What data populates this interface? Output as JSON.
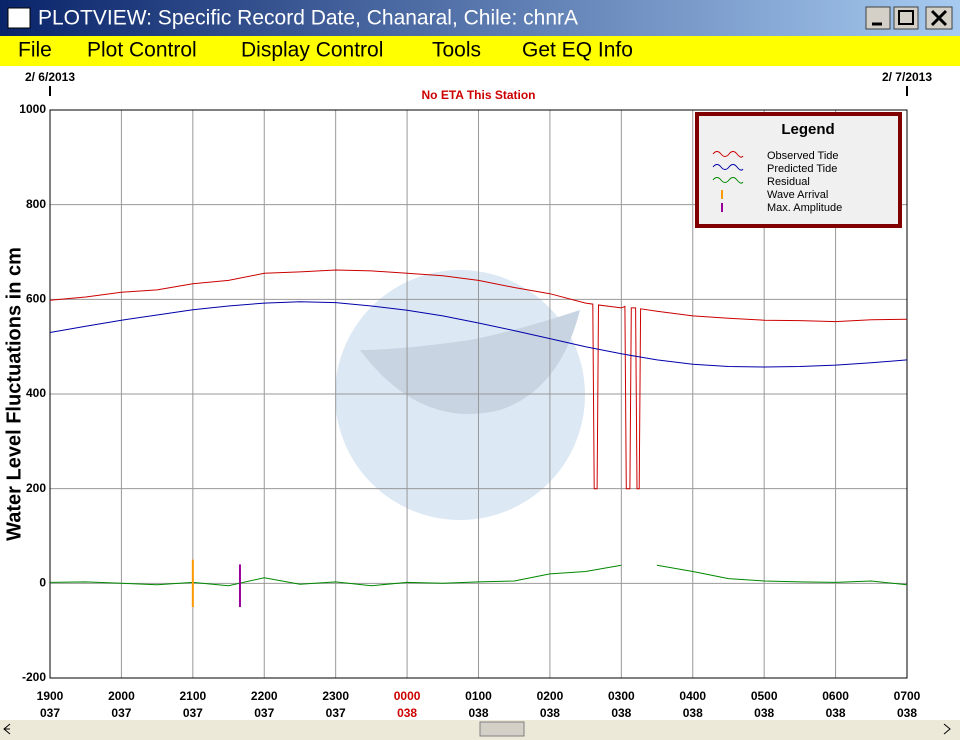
{
  "window": {
    "title": "PLOTVIEW: Specific Record Date, Chanaral, Chile: chnrA"
  },
  "menu": [
    "File",
    "Plot Control",
    "Display Control",
    "Tools",
    "Get EQ Info"
  ],
  "chart_data": {
    "type": "line",
    "start_date": "2/ 6/2013",
    "end_date": "2/ 7/2013",
    "annotation": "No ETA This Station",
    "y_label": "Water Level Fluctuations in cm",
    "legend_title": "Legend",
    "legend": "upper right",
    "xlim": [
      0,
      12
    ],
    "ylim": [
      -200,
      1000
    ],
    "yticks": [
      -200,
      0,
      200,
      400,
      600,
      800,
      1000
    ],
    "xticks": [
      {
        "value": 0,
        "label": "1900"
      },
      {
        "value": 1,
        "label": "2000"
      },
      {
        "value": 2,
        "label": "2100"
      },
      {
        "value": 3,
        "label": "2200"
      },
      {
        "value": 4,
        "label": "2300"
      },
      {
        "value": 5,
        "label": "0000"
      },
      {
        "value": 6,
        "label": "0100"
      },
      {
        "value": 7,
        "label": "0200"
      },
      {
        "value": 8,
        "label": "0300"
      },
      {
        "value": 9,
        "label": "0400"
      },
      {
        "value": 10,
        "label": "0500"
      },
      {
        "value": 11,
        "label": "0600"
      },
      {
        "value": 12,
        "label": "0700"
      }
    ],
    "xtick_days": [
      "037",
      "037",
      "037",
      "037",
      "037",
      "038",
      "038",
      "038",
      "038",
      "038",
      "038",
      "038",
      "038"
    ],
    "highlight_xtick": 5,
    "highlight_color": "#cc0000",
    "grid": true,
    "series": [
      {
        "name": "Observed Tide",
        "color": "#cc0000",
        "x": [
          0,
          0.5,
          1,
          1.5,
          2,
          2.5,
          3,
          3.5,
          4,
          4.5,
          5,
          5.5,
          6,
          6.5,
          7,
          7.5,
          7.6,
          7.62,
          7.66,
          7.68,
          8.0,
          8.05,
          8.07,
          8.12,
          8.14,
          8.2,
          8.22,
          8.25,
          8.27,
          8.5,
          9,
          9.5,
          10,
          10.5,
          11,
          11.5,
          12
        ],
        "values": [
          598,
          605,
          615,
          620,
          633,
          640,
          655,
          658,
          662,
          660,
          655,
          650,
          640,
          625,
          612,
          592,
          590,
          200,
          200,
          588,
          582,
          585,
          200,
          200,
          582,
          582,
          200,
          200,
          580,
          575,
          565,
          560,
          556,
          555,
          553,
          557,
          558
        ]
      },
      {
        "name": "Predicted Tide",
        "color": "#0000aa",
        "x": [
          0,
          0.5,
          1,
          1.5,
          2,
          2.5,
          3,
          3.5,
          4,
          4.5,
          5,
          5.5,
          6,
          6.5,
          7,
          7.5,
          8,
          8.5,
          9,
          9.5,
          10,
          10.5,
          11,
          11.5,
          12
        ],
        "values": [
          530,
          543,
          556,
          567,
          578,
          586,
          592,
          595,
          593,
          586,
          577,
          565,
          550,
          534,
          517,
          500,
          485,
          472,
          463,
          458,
          457,
          458,
          461,
          466,
          472
        ]
      },
      {
        "name": "Residual",
        "color": "#008800",
        "x": [
          0,
          0.5,
          1,
          1.5,
          2,
          2.5,
          3,
          3.5,
          4,
          4.5,
          5,
          5.5,
          6,
          6.5,
          7,
          7.5,
          8,
          8.25,
          8.5,
          9,
          9.5,
          10,
          10.5,
          11,
          11.5,
          12
        ],
        "values": [
          2,
          3,
          0,
          -3,
          2,
          -5,
          12,
          -2,
          3,
          -5,
          2,
          0,
          3,
          5,
          20,
          25,
          38,
          null,
          38,
          25,
          10,
          5,
          3,
          2,
          5,
          -3
        ]
      }
    ],
    "markers": [
      {
        "name": "Wave Arrival",
        "color": "#ff9900",
        "x": 2.0,
        "y": [
          -50,
          50
        ]
      },
      {
        "name": "Max. Amplitude",
        "color": "#990099",
        "x": 2.66,
        "y": [
          -50,
          40
        ]
      }
    ]
  }
}
